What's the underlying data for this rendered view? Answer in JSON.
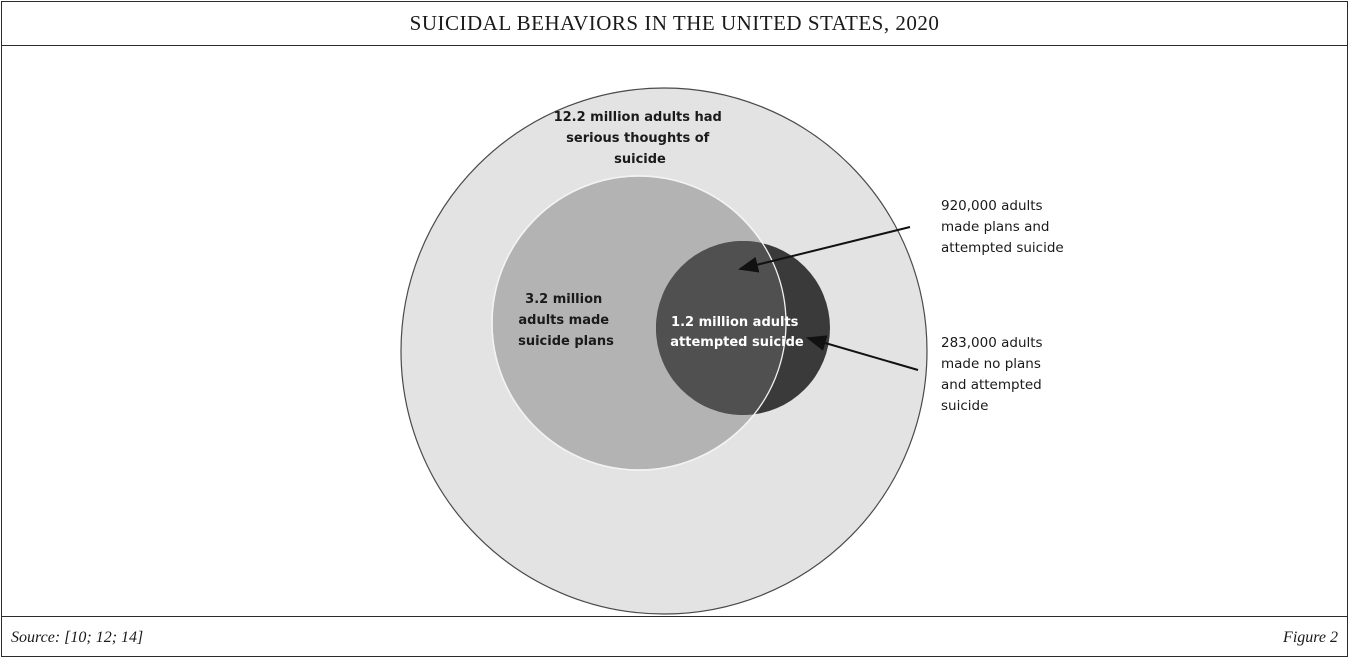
{
  "figure": {
    "title": "SUICIDAL BEHAVIORS IN THE UNITED STATES, 2020",
    "source": "Source: [10; 12; 14]",
    "figure_label": "Figure 2"
  },
  "diagram": {
    "outer_circle": {
      "lines": [
        "12.2 million adults had",
        "serious thoughts of",
        "suicide"
      ],
      "color": "#e3e3e3"
    },
    "plans_circle": {
      "lines": [
        "3.2 million",
        "adults made",
        "suicide plans"
      ],
      "color": "#b3b3b3"
    },
    "attempt_circle": {
      "lines": [
        "1.2 million adults",
        "attempted suicide"
      ],
      "color": "#505050",
      "outer_part_color": "#3a3a3a"
    },
    "callouts": [
      {
        "lines": [
          "920,000 adults",
          "made plans and",
          "attempted suicide"
        ]
      },
      {
        "lines": [
          "283,000 adults",
          "made no plans",
          "and attempted",
          "suicide"
        ]
      }
    ]
  }
}
